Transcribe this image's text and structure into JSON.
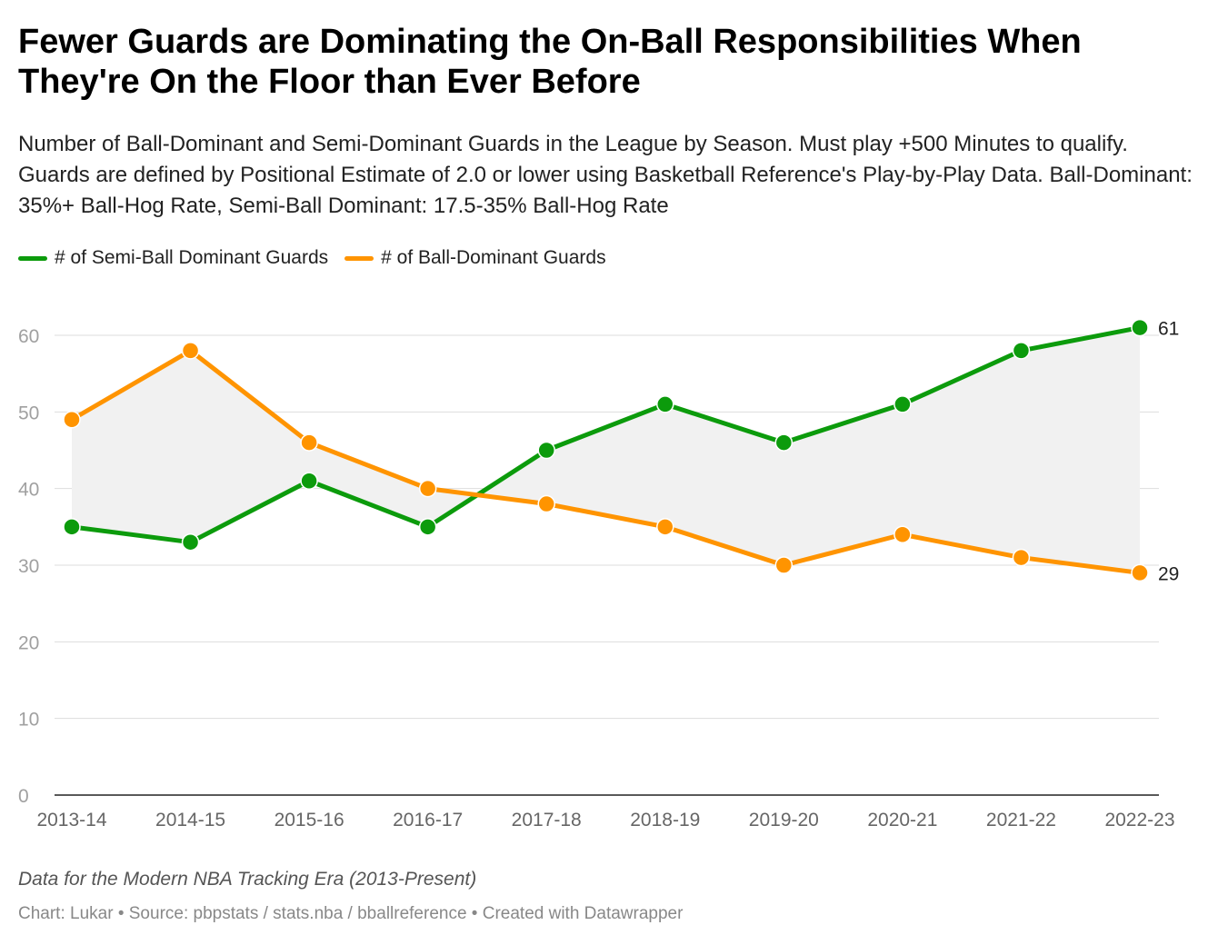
{
  "chart_data": {
    "type": "line",
    "title": "Fewer Guards are Dominating the On-Ball Responsibilities When They're On the Floor than Ever Before",
    "subtitle": "Number of Ball-Dominant and Semi-Dominant Guards in the League by Season. Must play +500 Minutes to qualify. Guards are defined by Positional Estimate of 2.0 or lower using Basketball Reference's Play-by-Play Data. Ball-Dominant: 35%+ Ball-Hog Rate, Semi-Ball Dominant: 17.5-35% Ball-Hog Rate",
    "categories": [
      "2013-14",
      "2014-15",
      "2015-16",
      "2016-17",
      "2017-18",
      "2018-19",
      "2019-20",
      "2020-21",
      "2021-22",
      "2022-23"
    ],
    "series": [
      {
        "name": "# of Semi-Ball Dominant Guards",
        "color": "#0c9b0c",
        "values": [
          35,
          33,
          41,
          35,
          45,
          51,
          46,
          51,
          58,
          61
        ],
        "end_label": "61"
      },
      {
        "name": "# of Ball-Dominant Guards",
        "color": "#ff9400",
        "values": [
          49,
          58,
          46,
          40,
          38,
          35,
          30,
          34,
          31,
          29
        ],
        "end_label": "29"
      }
    ],
    "ylim": [
      0,
      60
    ],
    "yticks": [
      "0",
      "10",
      "20",
      "30",
      "40",
      "50",
      "60"
    ],
    "xlabel": "",
    "ylabel": "",
    "grid": true,
    "legend_position": "top-left",
    "area_between_fill": "#f1f1f1",
    "note": "Data for the Modern NBA Tracking Era (2013-Present)",
    "credit": "Chart: Lukar • Source: pbpstats / stats.nba / bballreference • Created with Datawrapper"
  }
}
